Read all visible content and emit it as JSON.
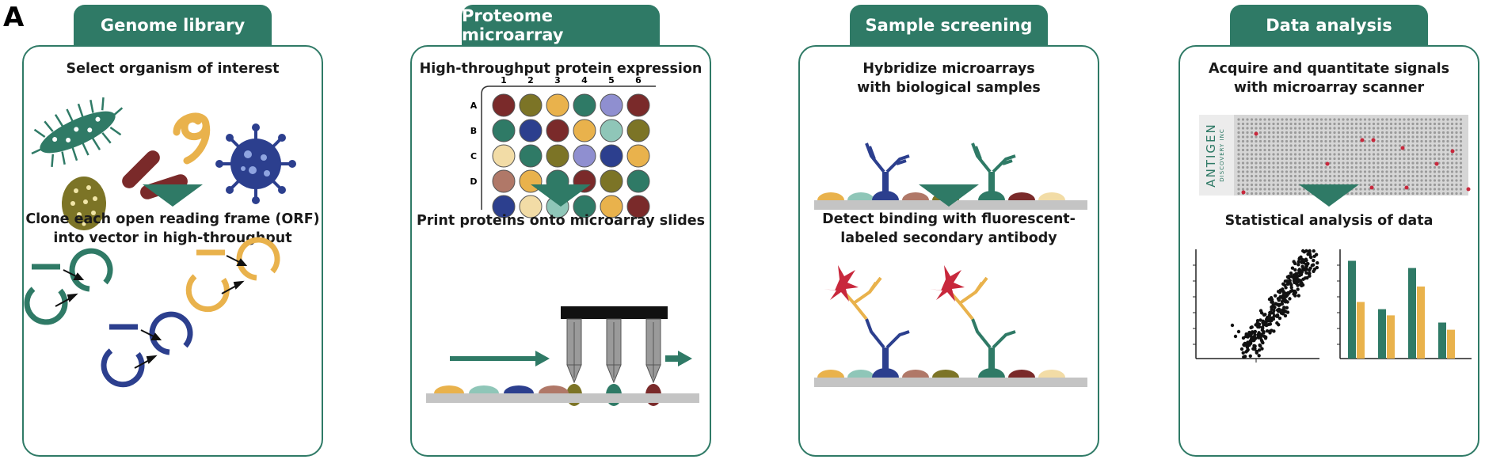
{
  "figure_label": "A",
  "panels": [
    {
      "tab": "Genome library",
      "step1": "Select organism of interest",
      "step2_line1": "Clone each open reading frame (ORF)",
      "step2_line2": "into vector in high-throughput"
    },
    {
      "tab": "Proteome microarray",
      "step1": "High-throughput protein expression",
      "step2": "Print proteins onto microarray slides",
      "plate_cols": [
        "1",
        "2",
        "3",
        "4",
        "5",
        "6"
      ],
      "plate_rows": [
        "A",
        "B",
        "C",
        "D"
      ]
    },
    {
      "tab": "Sample screening",
      "step1_line1": "Hybridize microarrays",
      "step1_line2": "with biological samples",
      "step2_line1": "Detect binding with fluorescent-",
      "step2_line2": "labeled secondary antibody"
    },
    {
      "tab": "Data analysis",
      "step1_line1": "Acquire and quantitate signals",
      "step1_line2": "with microarray scanner",
      "step2": "Statistical analysis of data",
      "logo_line1": "ANTIGEN",
      "logo_line2": "DISCOVERY INC"
    }
  ],
  "colors": {
    "teal": "#2f7a66",
    "gold": "#e9b24c",
    "navy": "#2c3f8e",
    "maroon": "#7a2a2a",
    "olive": "#7c7426",
    "slide": "#c4c4c4",
    "star": "#c8283c"
  },
  "bar_chart": {
    "groups": 4,
    "series_a": [
      0.95,
      0.48,
      0.88,
      0.35
    ],
    "series_b": [
      0.55,
      0.42,
      0.7,
      0.28
    ]
  }
}
